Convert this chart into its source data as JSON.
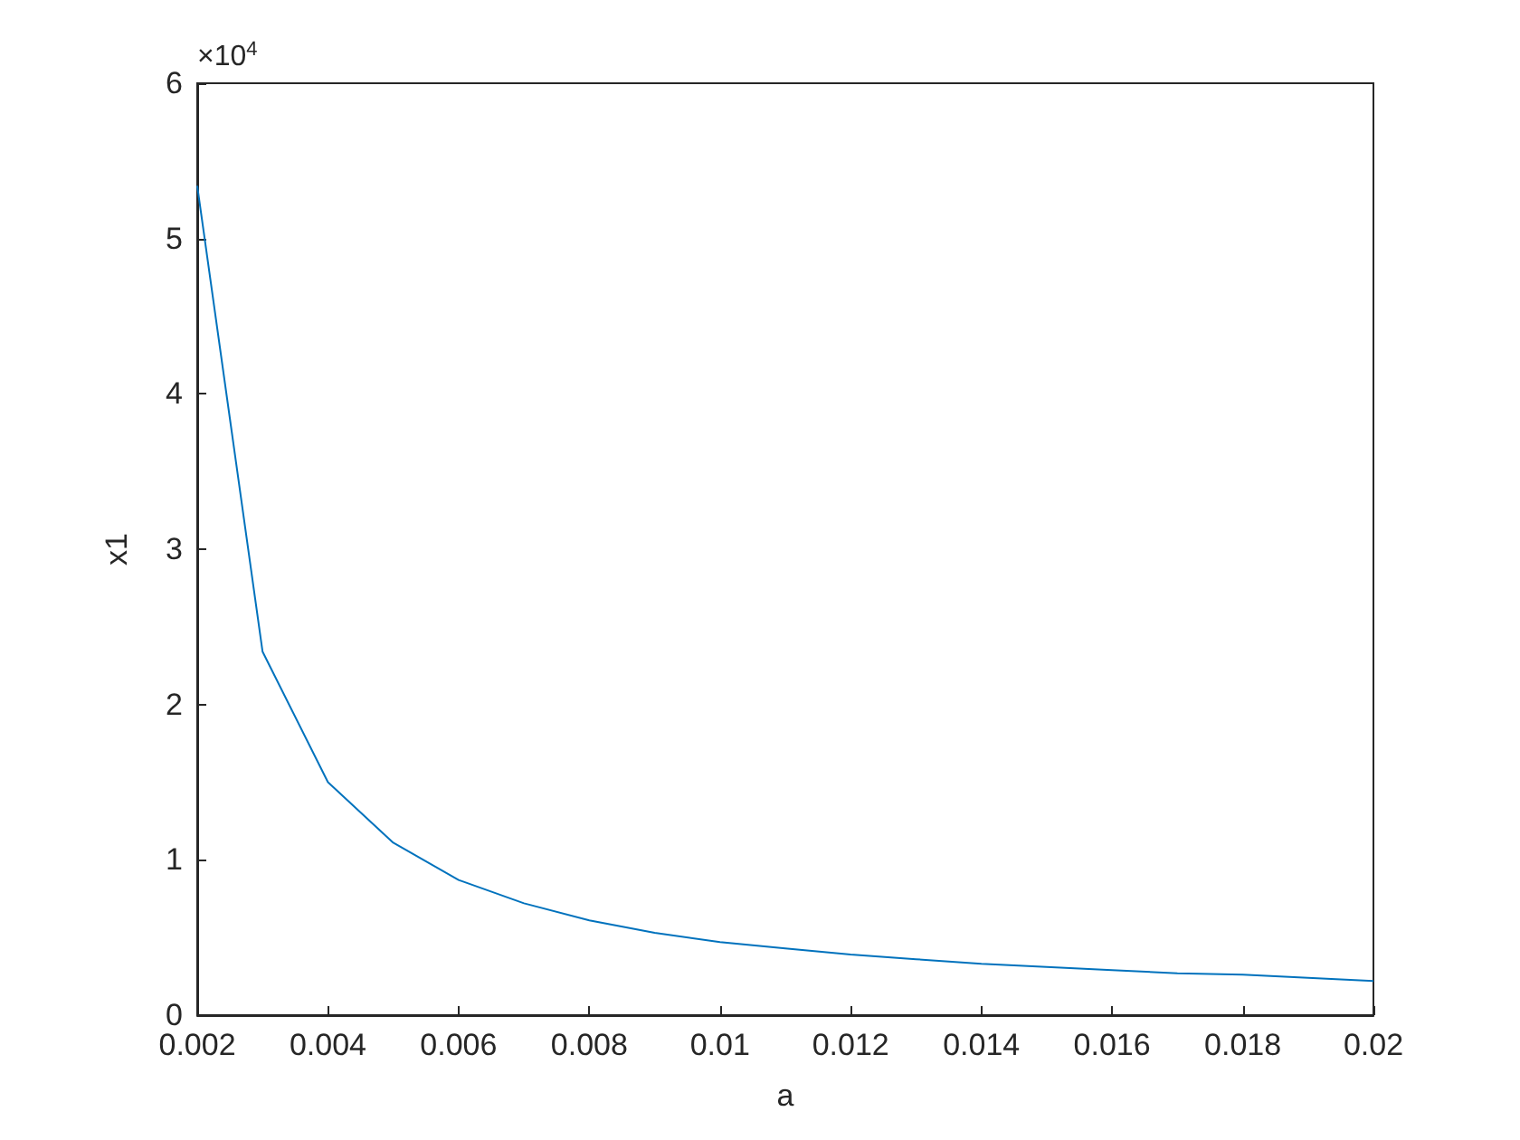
{
  "chart_data": {
    "type": "line",
    "xlabel": "a",
    "ylabel": "x1",
    "annotations": [
      "×10$^{4}$"
    ],
    "x": [
      0.002,
      0.003,
      0.004,
      0.005,
      0.006,
      0.007,
      0.008,
      0.009,
      0.01,
      0.011,
      0.012,
      0.013,
      0.014,
      0.015,
      0.016,
      0.017,
      0.018,
      0.019,
      0.02
    ],
    "series": [
      {
        "color": "#0072bd",
        "values": [
          5.34,
          2.34,
          1.5,
          1.11,
          0.87,
          0.72,
          0.61,
          0.53,
          0.47,
          0.43,
          0.39,
          0.36,
          0.33,
          0.31,
          0.29,
          0.27,
          0.26,
          0.24,
          0.22
        ]
      }
    ],
    "xlim": [
      0.002,
      0.02
    ],
    "xticks": [
      0.002,
      0.004,
      0.006,
      0.008,
      0.01,
      0.012,
      0.014,
      0.016,
      0.018,
      0.02
    ],
    "ylim": [
      0,
      6
    ],
    "yticks": [
      0,
      1,
      2,
      3,
      4,
      5,
      6
    ],
    "grid": false,
    "marker": "none",
    "line_style": "solid"
  }
}
